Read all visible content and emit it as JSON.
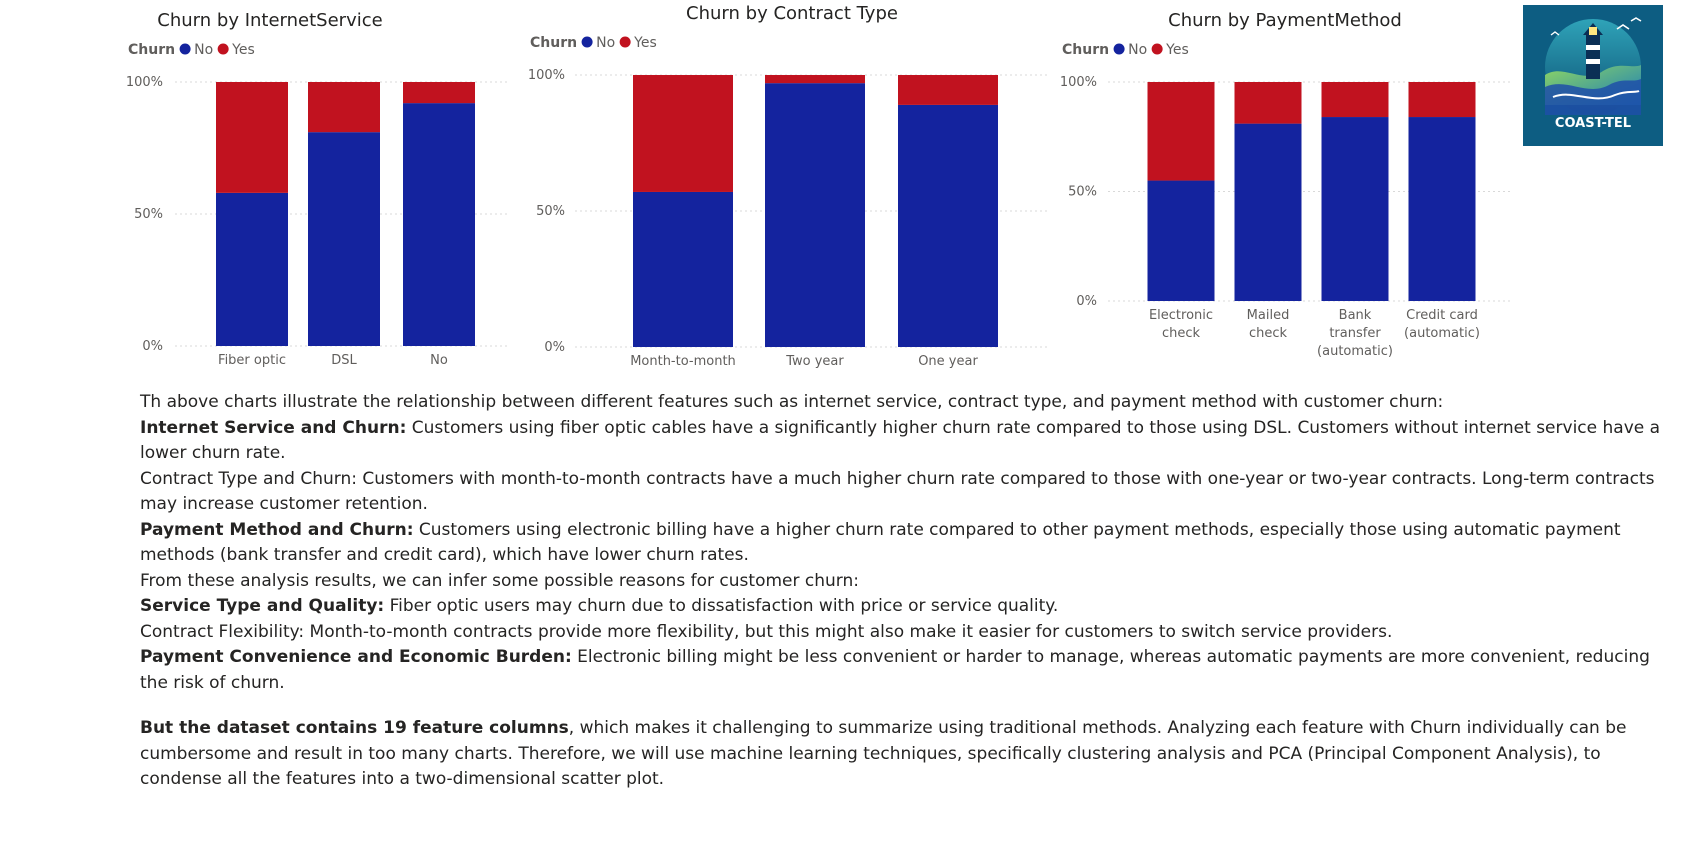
{
  "colors": {
    "no": "#14239e",
    "yes": "#c1121f"
  },
  "legend": {
    "title": "Churn",
    "no": "No",
    "yes": "Yes"
  },
  "logo": {
    "text": "COAST-TEL"
  },
  "chart_data": [
    {
      "type": "bar",
      "stacked": "100%",
      "title": "Churn by InternetService",
      "categories": [
        "Fiber optic",
        "DSL",
        "No"
      ],
      "y_ticks": [
        "0%",
        "50%",
        "100%"
      ],
      "ylim": [
        0,
        100
      ],
      "grid": true,
      "legend_placement": "top-left",
      "series": [
        {
          "name": "No",
          "values": [
            58,
            81,
            92
          ]
        },
        {
          "name": "Yes",
          "values": [
            42,
            19,
            8
          ]
        }
      ]
    },
    {
      "type": "bar",
      "stacked": "100%",
      "title": "Churn by Contract Type",
      "categories": [
        "Month-to-month",
        "Two year",
        "One year"
      ],
      "y_ticks": [
        "0%",
        "50%",
        "100%"
      ],
      "ylim": [
        0,
        100
      ],
      "grid": true,
      "legend_placement": "top-left",
      "series": [
        {
          "name": "No",
          "values": [
            57,
            97,
            89
          ]
        },
        {
          "name": "Yes",
          "values": [
            43,
            3,
            11
          ]
        }
      ]
    },
    {
      "type": "bar",
      "stacked": "100%",
      "title": "Churn by PaymentMethod",
      "categories": [
        [
          "Electronic",
          "check"
        ],
        [
          "Mailed",
          "check"
        ],
        [
          "Bank",
          "transfer",
          "(automatic)"
        ],
        [
          "Credit card",
          "(automatic)"
        ]
      ],
      "y_ticks": [
        "0%",
        "50%",
        "100%"
      ],
      "ylim": [
        0,
        100
      ],
      "grid": true,
      "legend_placement": "top-left",
      "series": [
        {
          "name": "No",
          "values": [
            55,
            81,
            84,
            84
          ]
        },
        {
          "name": "Yes",
          "values": [
            45,
            19,
            16,
            16
          ]
        }
      ]
    }
  ],
  "text": {
    "intro": "Th above charts illustrate the relationship between different features such as internet service, contract type, and payment method with customer churn:",
    "internet_b": "Internet Service and Churn:",
    "internet_t": " Customers using fiber optic cables have a significantly higher churn rate compared to those using DSL. Customers without internet service have a lower churn rate.",
    "contract": "Contract Type and Churn: Customers with month-to-month contracts have a much higher churn rate compared to those with one-year or two-year contracts. Long-term contracts may increase customer retention.",
    "payment_b": "Payment Method and Churn:",
    "payment_t": " Customers using electronic billing have a higher churn rate compared to other payment methods, especially those using automatic payment methods (bank transfer and credit card), which have lower churn rates.",
    "infer": "From these analysis results, we can infer some possible reasons for customer churn:",
    "service_b": "Service Type and Quality:",
    "service_t": " Fiber optic users may churn due to dissatisfaction with price or service quality.",
    "flex": "Contract Flexibility: Month-to-month contracts provide more flexibility, but this might also make it easier for customers to switch service providers.",
    "conv_b": "Payment Convenience and Economic Burden:",
    "conv_t": " Electronic billing might be less convenient or harder to manage, whereas automatic payments are more convenient, reducing the risk of churn.",
    "dataset_b": "But the dataset contains 19 feature columns",
    "dataset_t": ", which makes it challenging to summarize using traditional methods. Analyzing each feature with Churn individually can be cumbersome and result in too many charts. Therefore, we will use machine learning techniques, specifically clustering analysis and PCA (Principal Component Analysis), to condense all the features into a two-dimensional scatter plot."
  }
}
